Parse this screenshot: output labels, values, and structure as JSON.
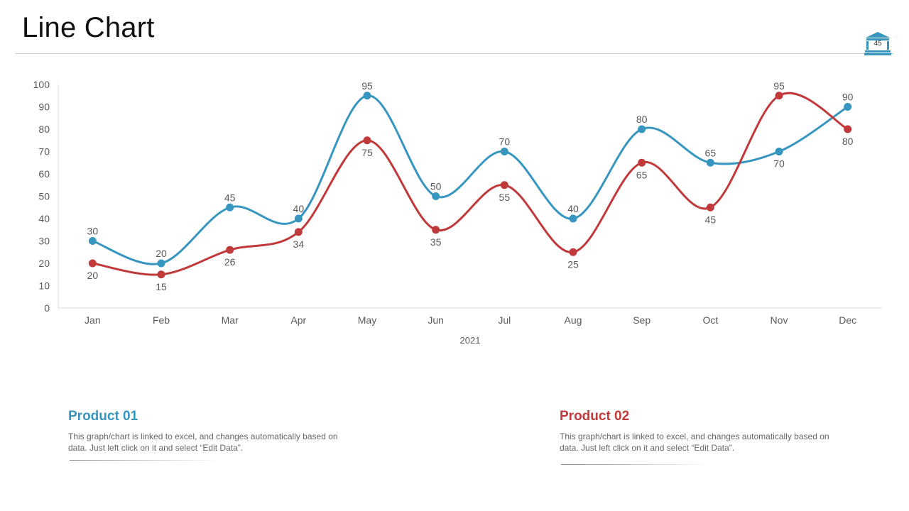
{
  "slide": {
    "title": "Line Chart",
    "page_number": "45"
  },
  "colors": {
    "product_01": "#3796bf",
    "product_02": "#c0393b"
  },
  "icons": {
    "page_badge": "bank-building-icon"
  },
  "chart_data": {
    "type": "line",
    "categories": [
      "Jan",
      "Feb",
      "Mar",
      "Apr",
      "May",
      "Jun",
      "Jul",
      "Aug",
      "Sep",
      "Oct",
      "Nov",
      "Dec"
    ],
    "xlabel": "2021",
    "ylabel": "",
    "ylim": [
      0,
      100
    ],
    "yticks": [
      "0",
      "10",
      "20",
      "30",
      "40",
      "50",
      "60",
      "70",
      "80",
      "90",
      "100"
    ],
    "grid": false,
    "smooth": true,
    "series": [
      {
        "key": "product_01",
        "values": [
          30,
          20,
          45,
          40,
          95,
          50,
          70,
          40,
          80,
          65,
          70,
          90
        ]
      },
      {
        "key": "product_02",
        "values": [
          20,
          15,
          26,
          34,
          75,
          35,
          55,
          25,
          65,
          45,
          95,
          80
        ]
      }
    ]
  },
  "products": [
    {
      "title": "Product 01",
      "description": "This graph/chart is linked to excel, and changes automatically based on data. Just left click on it and select “Edit Data”."
    },
    {
      "title": "Product 02",
      "description": "This graph/chart is linked to excel, and changes automatically based on data. Just left click on it and select “Edit Data”."
    }
  ]
}
